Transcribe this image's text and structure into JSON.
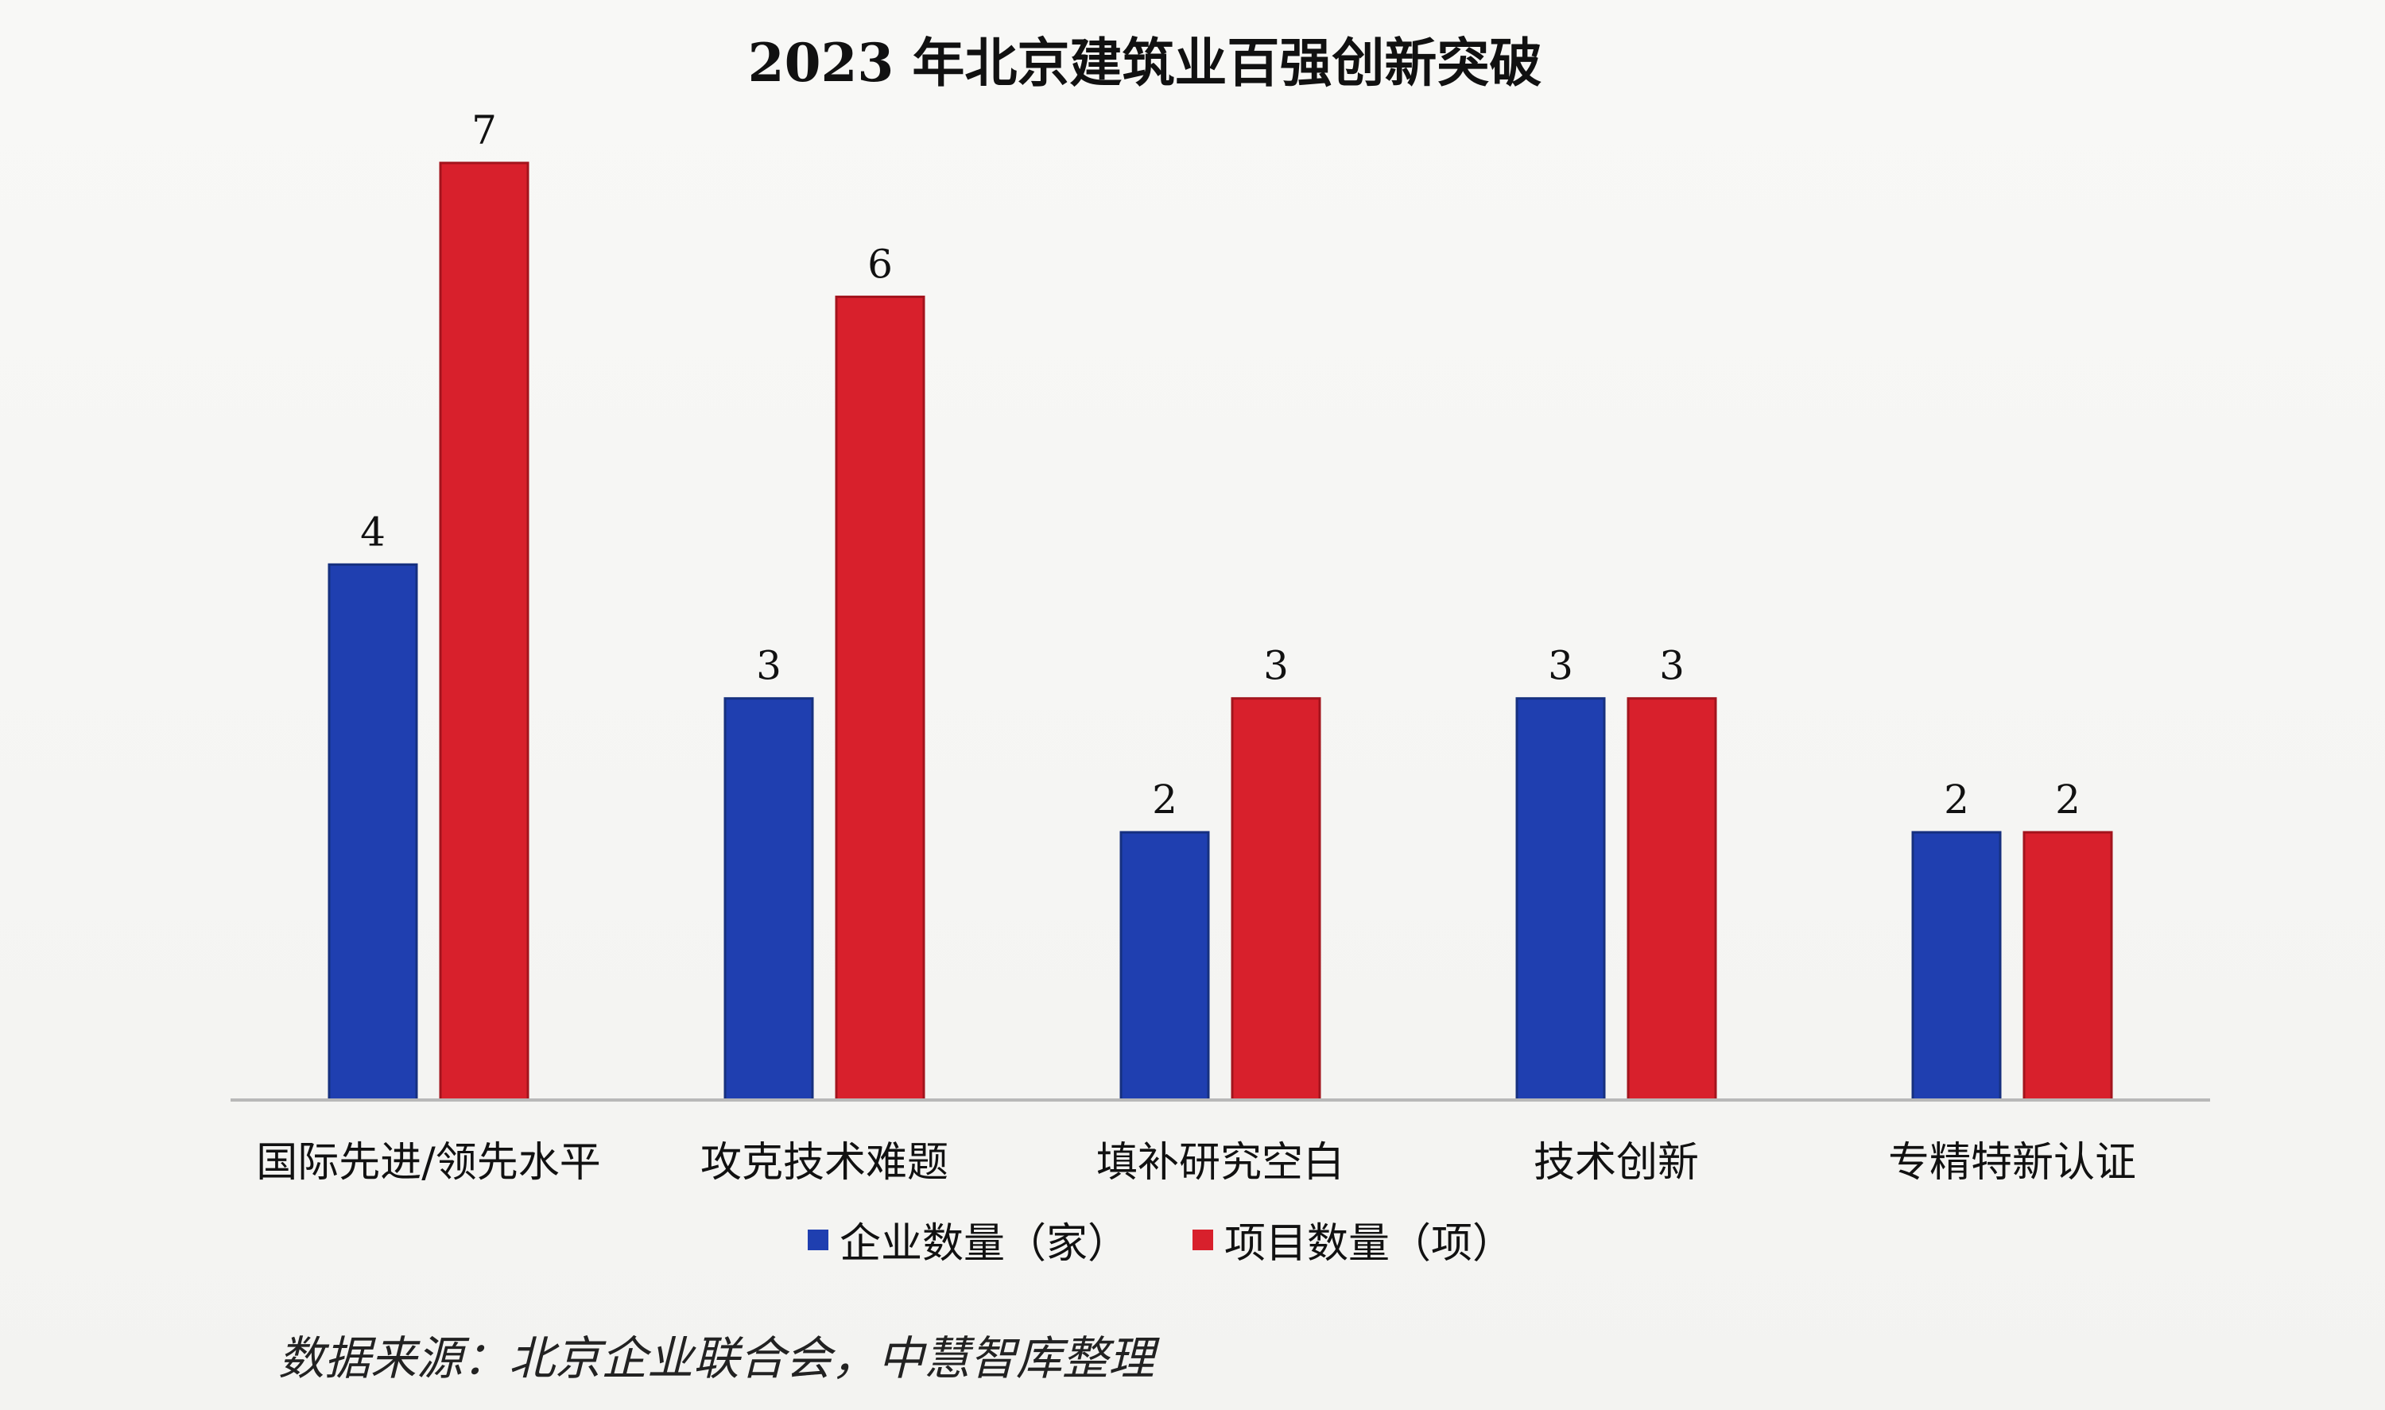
{
  "chart_data": {
    "type": "bar",
    "title": "2023 年北京建筑业百强创新突破",
    "categories": [
      "国际先进/领先水平",
      "攻克技术难题",
      "填补研究空白",
      "技术创新",
      "专精特新认证"
    ],
    "series": [
      {
        "name": "企业数量（家）",
        "color": "#1f3fb0",
        "values": [
          4,
          3,
          2,
          3,
          2
        ]
      },
      {
        "name": "项目数量（项）",
        "color": "#d8202c",
        "values": [
          7,
          6,
          3,
          3,
          2
        ]
      }
    ],
    "ylim": [
      0,
      7
    ],
    "grid": false,
    "legend_position": "bottom",
    "data_labels": true
  },
  "source_note": "数据来源：北京企业联合会，中慧智库整理"
}
